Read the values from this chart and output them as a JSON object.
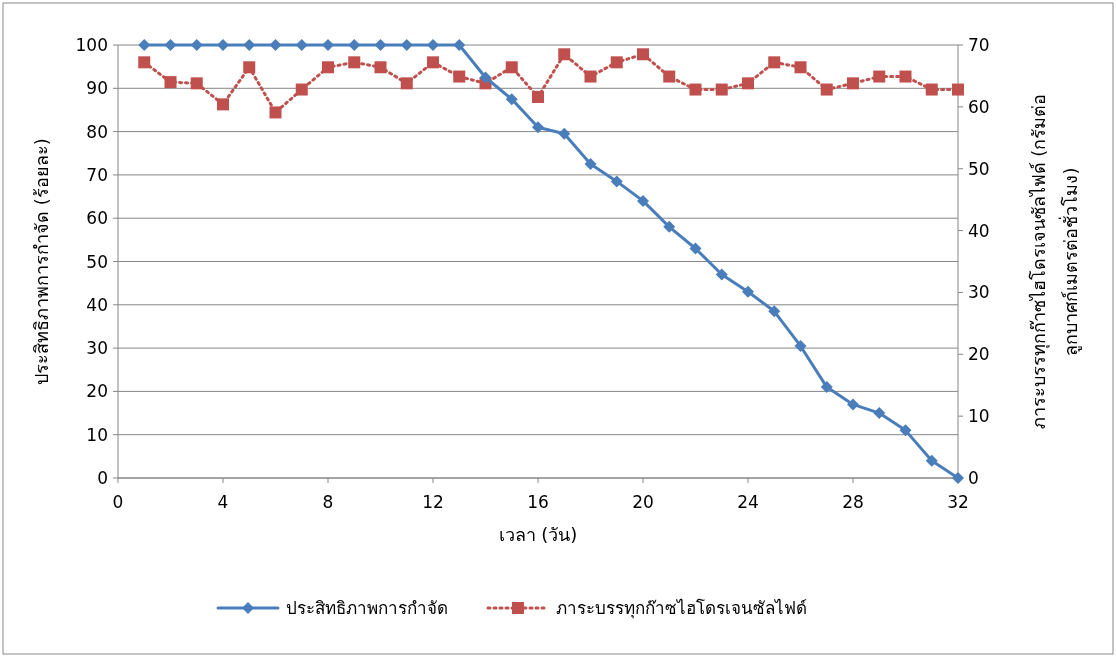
{
  "chart_data": {
    "type": "line",
    "xlabel": "เวลา (วัน)",
    "ylabel": "ประสิทธิภาพการกำจัด (ร้อยละ)",
    "y2label": "ภาระบรรทุกก๊าซไฮโดรเจนซัลไฟด์ (กรัมต่อ\nลูกบาศก์เมตรต่อชั่วโมง)",
    "x": [
      1,
      2,
      3,
      4,
      5,
      6,
      7,
      8,
      9,
      10,
      11,
      12,
      13,
      14,
      15,
      16,
      17,
      18,
      19,
      20,
      21,
      22,
      23,
      24,
      25,
      26,
      27,
      28,
      29,
      30,
      31,
      32
    ],
    "series": [
      {
        "name": "ประสิทธิภาพการกำจัด",
        "color": "#4a7ebb",
        "marker": "diamond",
        "line_style": "solid",
        "values": [
          100,
          100,
          100,
          100,
          100,
          100,
          100,
          100,
          100,
          100,
          100,
          100,
          100,
          92.5,
          87.5,
          81,
          79.5,
          72.5,
          68.5,
          64,
          58,
          53,
          47,
          43,
          38.5,
          30.5,
          21,
          17,
          15,
          11,
          4,
          0
        ]
      },
      {
        "name": "ภาระบรรทุกก๊าซไฮโดรเจนซัลไฟด์",
        "color": "#c0504d",
        "marker": "square",
        "line_style": "dotted",
        "axis": "y2",
        "values": [
          67.2,
          64,
          63.8,
          60.4,
          66.4,
          59.1,
          62.8,
          66.4,
          67.2,
          66.4,
          63.8,
          67.2,
          64.9,
          63.8,
          66.4,
          61.6,
          68.5,
          64.9,
          67.2,
          68.5,
          64.9,
          62.8,
          62.8,
          63.8,
          67.2,
          66.4,
          62.8,
          63.8,
          64.9,
          64.9,
          62.8,
          62.8
        ]
      }
    ],
    "xlim": [
      0,
      32
    ],
    "xticks": [
      0,
      4,
      8,
      12,
      16,
      20,
      24,
      28,
      32
    ],
    "ylim": [
      0,
      100
    ],
    "yticks": [
      0,
      10,
      20,
      30,
      40,
      50,
      60,
      70,
      80,
      90,
      100
    ],
    "y2lim": [
      0,
      70
    ],
    "y2ticks": [
      0,
      10,
      20,
      30,
      40,
      50,
      60,
      70
    ],
    "grid": "y",
    "legend": "bottom"
  }
}
